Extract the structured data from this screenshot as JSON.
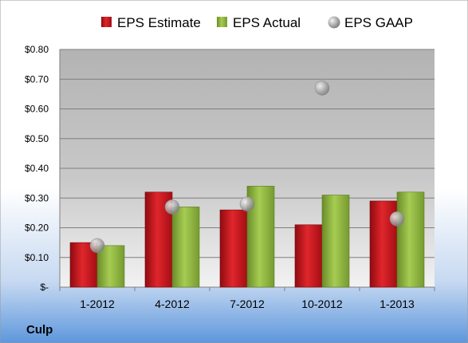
{
  "chart_data": {
    "type": "bar",
    "categories": [
      "1-2012",
      "4-2012",
      "7-2012",
      "10-2012",
      "1-2013"
    ],
    "series": [
      {
        "name": "EPS Estimate",
        "type": "bar",
        "values": [
          0.15,
          0.32,
          0.26,
          0.21,
          0.29
        ],
        "color": "#c0141c"
      },
      {
        "name": "EPS Actual",
        "type": "bar",
        "values": [
          0.14,
          0.27,
          0.34,
          0.31,
          0.32
        ],
        "color": "#8cb43c"
      },
      {
        "name": "EPS GAAP",
        "type": "scatter",
        "values": [
          0.14,
          0.27,
          0.28,
          0.67,
          0.23
        ],
        "color": "#a8a8a8"
      }
    ],
    "ylim": [
      0,
      0.8
    ],
    "yticks": [
      0,
      0.1,
      0.2,
      0.3,
      0.4,
      0.5,
      0.6,
      0.7,
      0.8
    ],
    "ytick_labels": [
      "$-",
      "$0.10",
      "$0.20",
      "$0.30",
      "$0.40",
      "$0.50",
      "$0.60",
      "$0.70",
      "$0.80"
    ],
    "grid": true,
    "legend_position": "top",
    "footer_label": "Culp"
  }
}
